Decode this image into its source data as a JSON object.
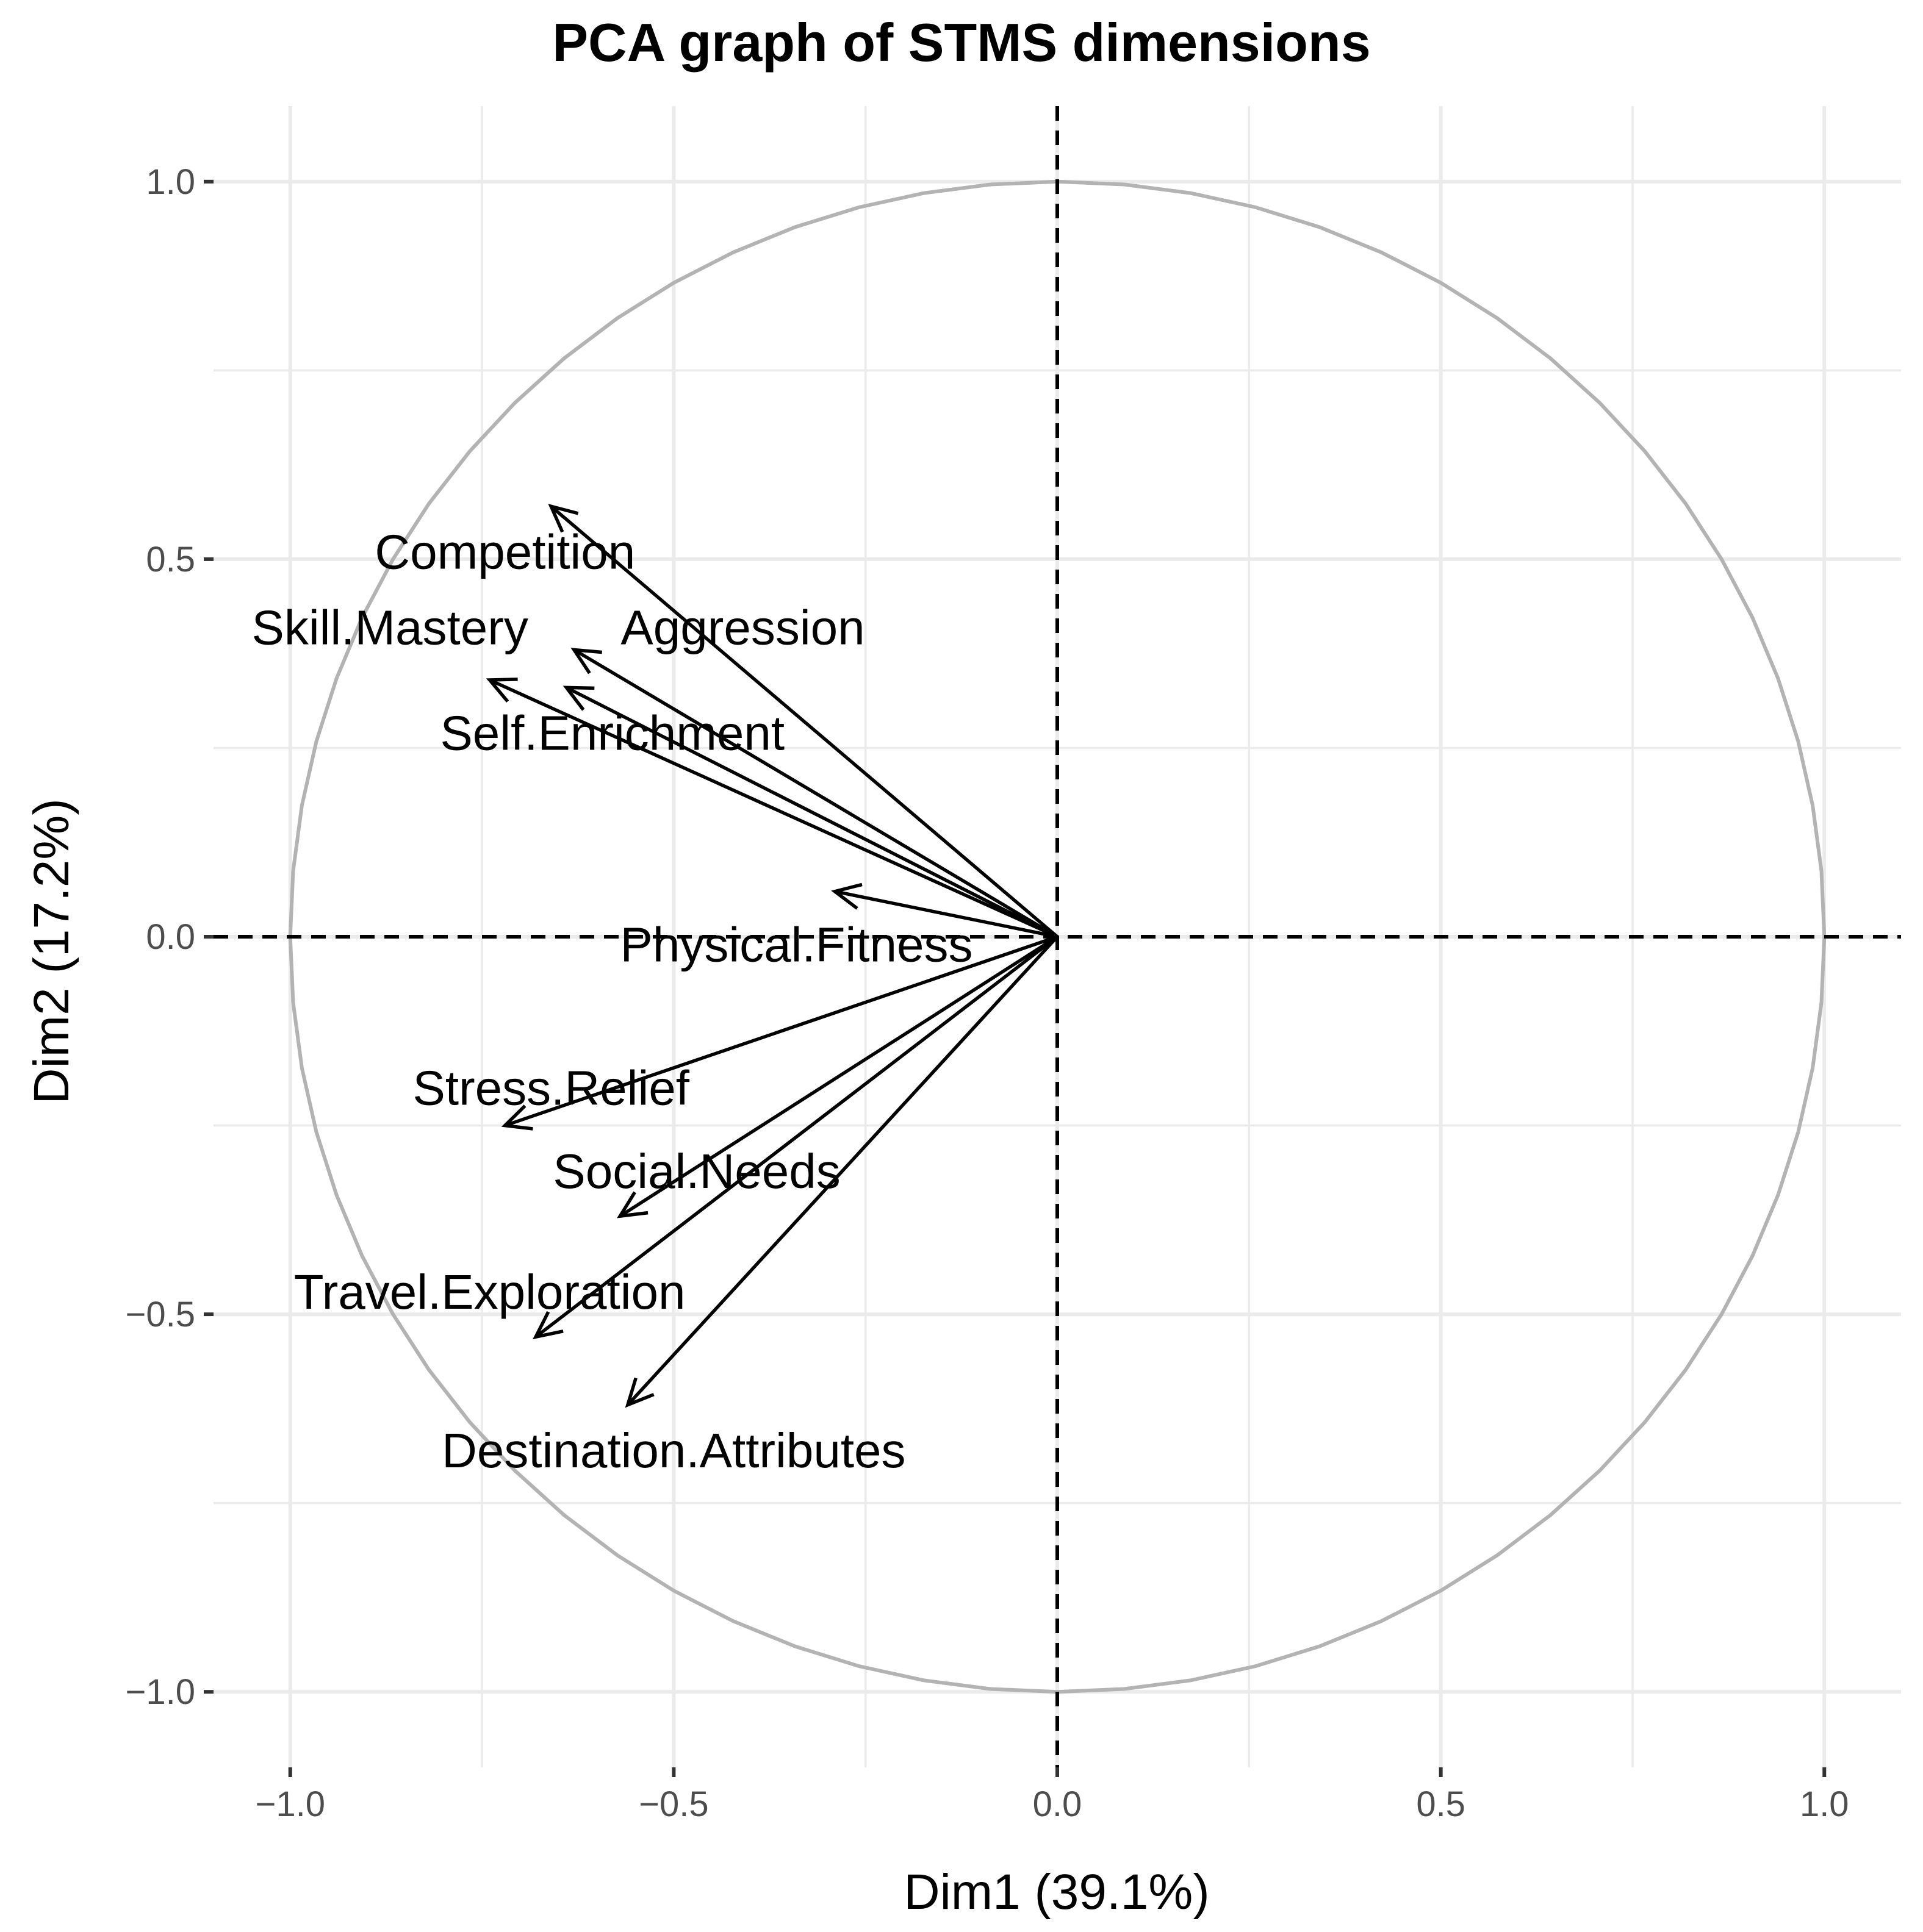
{
  "chart_data": {
    "type": "scatter",
    "title": "PCA graph of STMS dimensions",
    "xlabel": "Dim1 (39.1%)",
    "ylabel": "Dim2 (17.2%)",
    "xlim": [
      -1.1,
      1.1
    ],
    "ylim": [
      -1.1,
      1.1
    ],
    "xticks": [
      -1.0,
      -0.5,
      0.0,
      0.5,
      1.0
    ],
    "yticks": [
      -1.0,
      -0.5,
      0.0,
      0.5,
      1.0
    ],
    "xtick_labels": [
      "−1.0",
      "−0.5",
      "0.0",
      "0.5",
      "1.0"
    ],
    "ytick_labels": [
      "−1.0",
      "−0.5",
      "0.0",
      "0.5",
      "1.0"
    ],
    "minor_grid": [
      -0.75,
      -0.25,
      0.25,
      0.75
    ],
    "grid": true,
    "unit_circle": true,
    "reference_lines": {
      "x": 0,
      "y": 0,
      "style": "dashed"
    },
    "vectors": [
      {
        "name": "Competition",
        "x": -0.66,
        "y": 0.57,
        "label_x": -0.72,
        "label_y": 0.51
      },
      {
        "name": "Aggression",
        "x": -0.63,
        "y": 0.38,
        "label_x": -0.41,
        "label_y": 0.41
      },
      {
        "name": "Skill.Mastery",
        "x": -0.74,
        "y": 0.34,
        "label_x": -0.87,
        "label_y": 0.41
      },
      {
        "name": "Self.Enrichment",
        "x": -0.64,
        "y": 0.33,
        "label_x": -0.58,
        "label_y": 0.27
      },
      {
        "name": "Physical.Fitness",
        "x": -0.29,
        "y": 0.06,
        "label_x": -0.34,
        "label_y": -0.01
      },
      {
        "name": "Stress.Relief",
        "x": -0.72,
        "y": -0.25,
        "label_x": -0.66,
        "label_y": -0.2
      },
      {
        "name": "Social.Needs",
        "x": -0.57,
        "y": -0.37,
        "label_x": -0.47,
        "label_y": -0.31
      },
      {
        "name": "Travel.Exploration",
        "x": -0.68,
        "y": -0.53,
        "label_x": -0.74,
        "label_y": -0.47
      },
      {
        "name": "Destination.Attributes",
        "x": -0.56,
        "y": -0.62,
        "label_x": -0.5,
        "label_y": -0.68
      }
    ]
  }
}
